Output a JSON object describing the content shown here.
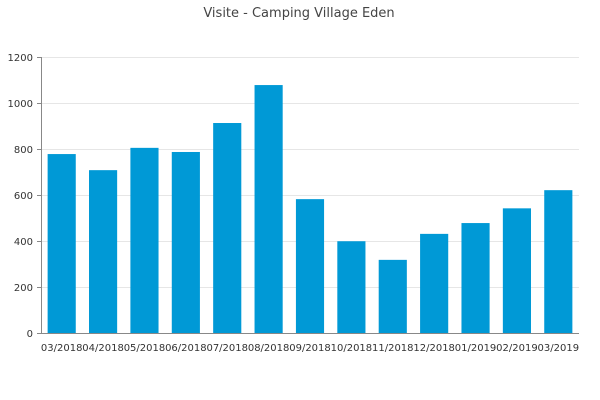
{
  "chart_data": {
    "type": "bar",
    "title": "Visite - Camping Village Eden",
    "xlabel": "",
    "ylabel": "",
    "categories": [
      "03/2018",
      "04/2018",
      "05/2018",
      "06/2018",
      "07/2018",
      "08/2018",
      "09/2018",
      "10/2018",
      "11/2018",
      "12/2018",
      "01/2019",
      "02/2019",
      "03/2019"
    ],
    "values": [
      778,
      708,
      805,
      787,
      913,
      1078,
      582,
      399,
      318,
      431,
      478,
      542,
      621
    ],
    "ylim": [
      0,
      1200
    ],
    "yticks": [
      0,
      200,
      400,
      600,
      800,
      1000,
      1200
    ],
    "grid": true,
    "legend": "none",
    "bar_color": "#0099d6"
  }
}
